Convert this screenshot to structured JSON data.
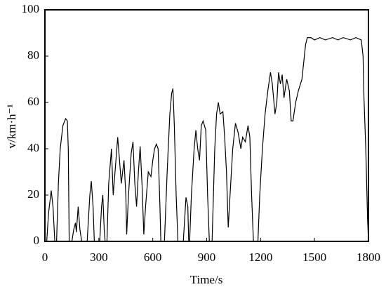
{
  "chart_data": {
    "type": "line",
    "xlabel": "Time/s",
    "ylabel": "v/km·h⁻¹",
    "xlim": [
      0,
      1800
    ],
    "xticks": [
      0,
      300,
      600,
      900,
      1200,
      1500,
      1800
    ],
    "ylim": [
      0,
      100
    ],
    "yticks": [
      0,
      20,
      40,
      60,
      80,
      100
    ],
    "x": [
      0,
      10,
      20,
      35,
      45,
      55,
      65,
      75,
      85,
      100,
      115,
      125,
      130,
      135,
      150,
      160,
      170,
      175,
      185,
      195,
      205,
      235,
      250,
      258,
      268,
      275,
      305,
      315,
      322,
      330,
      335,
      345,
      355,
      370,
      380,
      395,
      405,
      415,
      425,
      440,
      450,
      455,
      465,
      480,
      490,
      500,
      510,
      520,
      530,
      540,
      550,
      560,
      575,
      590,
      600,
      610,
      620,
      630,
      640,
      645,
      665,
      680,
      695,
      705,
      712,
      720,
      730,
      740,
      770,
      785,
      795,
      800,
      805,
      815,
      830,
      840,
      850,
      860,
      870,
      880,
      895,
      905,
      915,
      930,
      945,
      955,
      965,
      975,
      990,
      1000,
      1010,
      1020,
      1030,
      1045,
      1060,
      1075,
      1090,
      1100,
      1115,
      1130,
      1140,
      1150,
      1160,
      1185,
      1195,
      1210,
      1225,
      1240,
      1255,
      1265,
      1280,
      1290,
      1300,
      1310,
      1320,
      1330,
      1345,
      1360,
      1370,
      1380,
      1395,
      1410,
      1430,
      1450,
      1460,
      1480,
      1500,
      1530,
      1560,
      1600,
      1630,
      1660,
      1700,
      1730,
      1760,
      1770,
      1775,
      1785,
      1795,
      1800
    ],
    "series": [
      {
        "color": "#000000",
        "values": [
          0,
          0,
          12,
          22,
          15,
          0,
          0,
          25,
          40,
          50,
          53,
          52,
          40,
          0,
          0,
          5,
          8,
          4,
          15,
          5,
          0,
          0,
          20,
          26,
          15,
          0,
          0,
          15,
          20,
          5,
          0,
          0,
          25,
          40,
          20,
          35,
          45,
          35,
          25,
          35,
          20,
          3,
          20,
          38,
          43,
          25,
          15,
          30,
          41,
          25,
          3,
          15,
          30,
          28,
          35,
          40,
          42,
          40,
          15,
          0,
          0,
          30,
          55,
          64,
          66,
          50,
          20,
          0,
          0,
          19,
          15,
          0,
          0,
          20,
          40,
          48,
          40,
          35,
          50,
          52,
          48,
          20,
          0,
          0,
          40,
          55,
          60,
          55,
          56,
          45,
          30,
          6,
          20,
          40,
          51,
          47,
          40,
          45,
          43,
          50,
          45,
          20,
          0,
          0,
          20,
          40,
          55,
          65,
          73,
          68,
          55,
          60,
          73,
          68,
          72,
          62,
          70,
          65,
          52,
          52,
          60,
          65,
          70,
          85,
          88,
          88,
          87,
          88,
          87,
          88,
          87,
          88,
          87,
          88,
          87,
          80,
          62,
          40,
          10,
          0
        ]
      }
    ]
  }
}
